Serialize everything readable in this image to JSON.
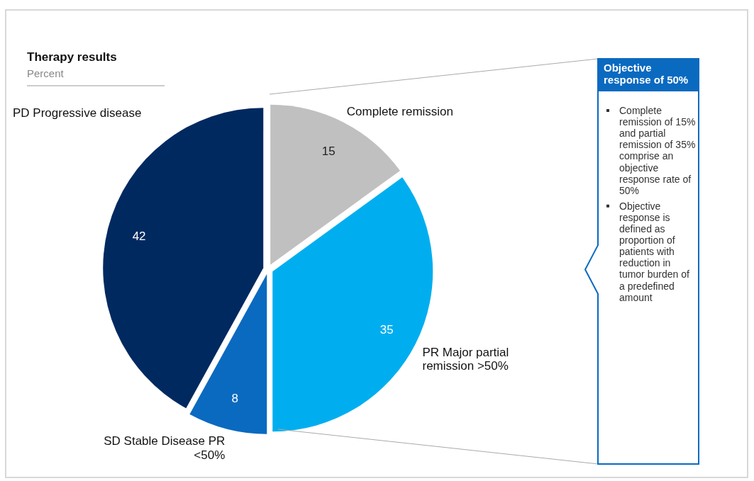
{
  "chart_data": {
    "type": "pie",
    "title": "Therapy results",
    "subtitle": "Percent",
    "categories": [
      "Complete remission",
      "PR Major partial remission >50%",
      "SD Stable Disease PR <50%",
      "PD Progressive disease"
    ],
    "values": [
      15,
      35,
      8,
      42
    ],
    "colors": [
      "#c0c0c0",
      "#00aeef",
      "#0a6ac0",
      "#002960"
    ],
    "data_labels": true,
    "annotations": [
      "Objective response  of 50%",
      "Complete remission of 15% and partial remission of 35% comprise an objective response rate of 50%",
      "Objective response is defined as proportion of patients with reduction in tumor burden of a predefined amount"
    ]
  }
}
